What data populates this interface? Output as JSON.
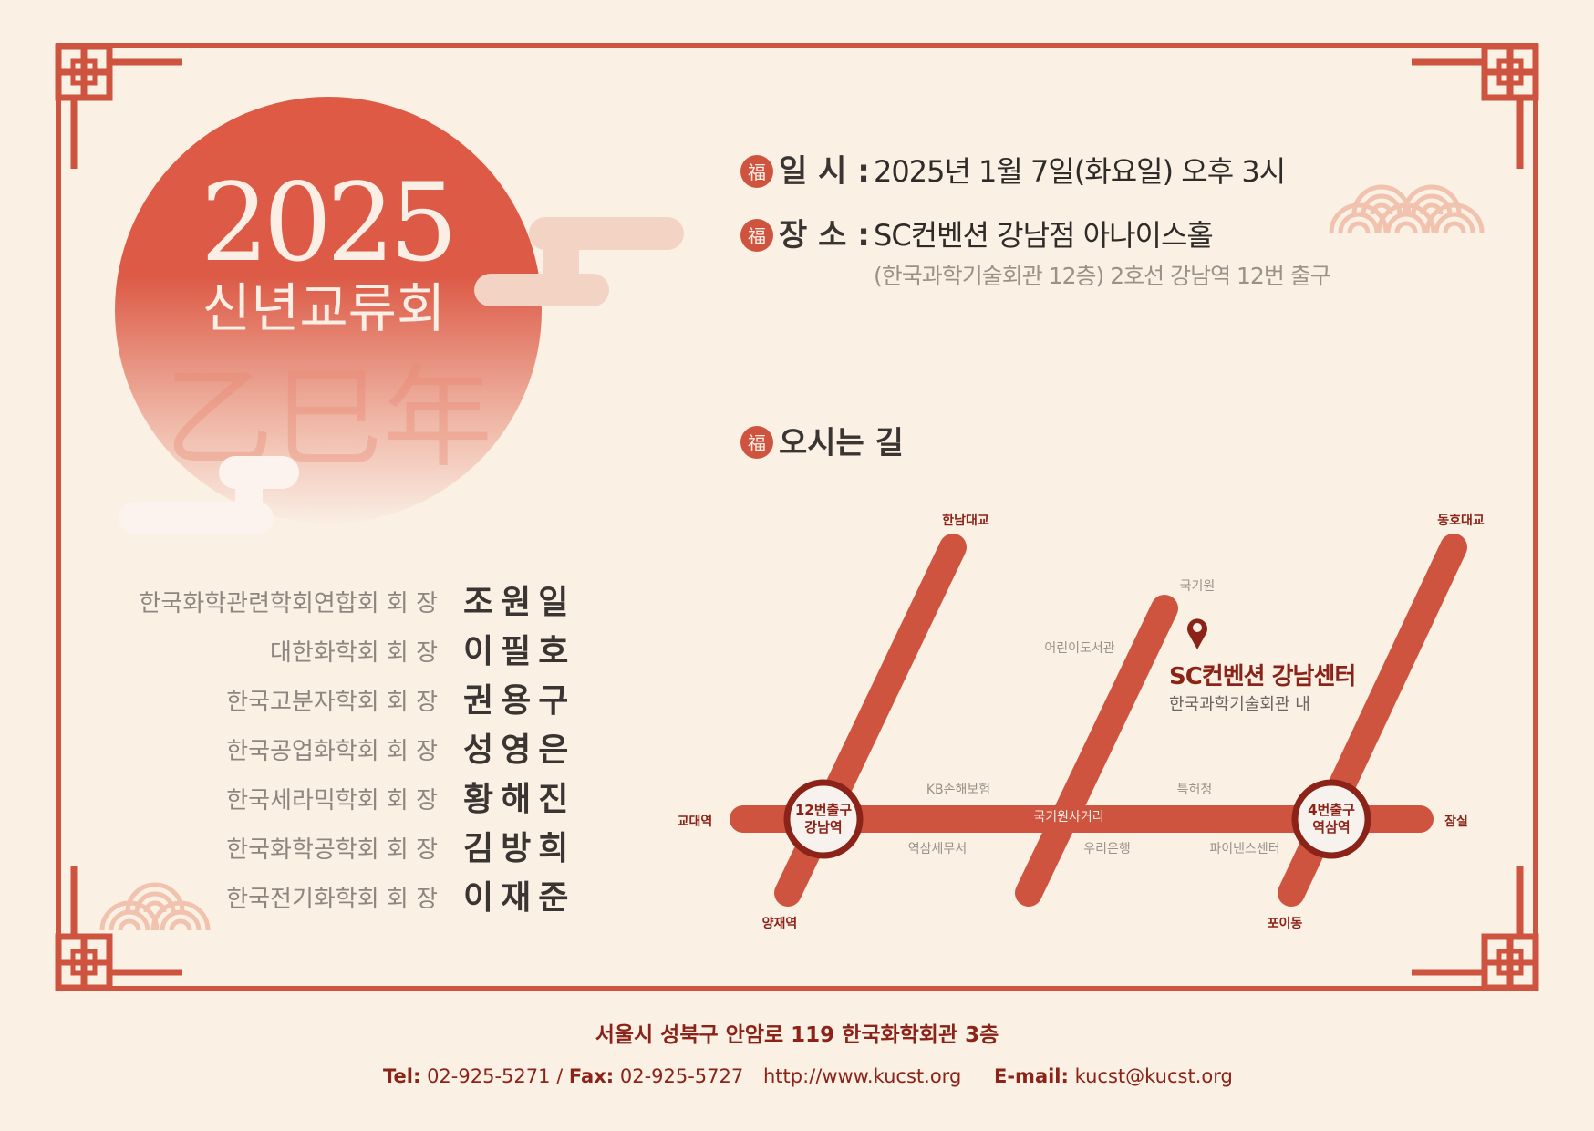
{
  "colors": {
    "background": "#faf0e4",
    "accent": "#cf5440",
    "dark_accent": "#8b2318",
    "text": "#3a3533",
    "muted": "#9a9188"
  },
  "hero": {
    "year": "2025",
    "title": "신년교류회",
    "watermark": "乙巳年"
  },
  "info": {
    "badge_char": "福",
    "date_label": "일 시 :",
    "date_value": "2025년 1월 7일(화요일) 오후 3시",
    "place_label": "장 소 :",
    "place_value": "SC컨벤션 강남점 아나이스홀",
    "place_sub": "(한국과학기술회관 12층) 2호선 강남역 12번 출구",
    "directions_label": "오시는 길"
  },
  "hosts": [
    {
      "org": "한국화학관련학회연합회 회 장",
      "name": "조원일"
    },
    {
      "org": "대한화학회 회 장",
      "name": "이필호"
    },
    {
      "org": "한국고분자학회 회 장",
      "name": "권용구"
    },
    {
      "org": "한국공업화학회 회 장",
      "name": "성영은"
    },
    {
      "org": "한국세라믹학회 회 장",
      "name": "황해진"
    },
    {
      "org": "한국화학공학회 회 장",
      "name": "김방희"
    },
    {
      "org": "한국전기화학회 회 장",
      "name": "이재준"
    }
  ],
  "map": {
    "ends": {
      "top_left": "한남대교",
      "top_right": "동호대교",
      "left": "교대역",
      "right": "잠실",
      "bottom_left": "양재역",
      "bottom_right": "포이동"
    },
    "stations": [
      {
        "exit": "12번출구",
        "name": "강남역"
      },
      {
        "exit": "4번출구",
        "name": "역삼역"
      }
    ],
    "landmarks": {
      "gukkiwon": "국기원",
      "library": "어린이도서관",
      "kb": "KB손해보험",
      "patent": "특허청",
      "crossroad": "국기원사거리",
      "tax": "역삼세무서",
      "woori": "우리은행",
      "finance": "파이낸스센터"
    },
    "venue": {
      "name": "SC컨벤션 강남센터",
      "sub": "한국과학기술회관 내",
      "icon": "map-pin-icon"
    }
  },
  "footer": {
    "address": "서울시 성북구 안암로 119 한국화학회관 3층",
    "tel_label": "Tel:",
    "tel": "02-925-5271",
    "sep": "/",
    "fax_label": "Fax:",
    "fax": "02-925-5727",
    "website": "http://www.kucst.org",
    "email_label": "E-mail:",
    "email": "kucst@kucst.org"
  }
}
